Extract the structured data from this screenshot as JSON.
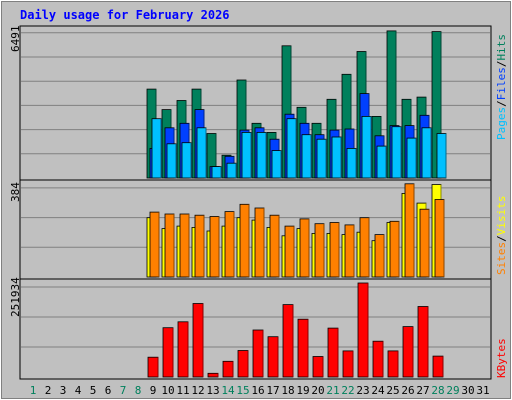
{
  "chart_data": {
    "type": "bar",
    "title": "Daily usage for February 2026",
    "categories": [
      "1",
      "2",
      "3",
      "4",
      "5",
      "6",
      "7",
      "8",
      "9",
      "10",
      "11",
      "12",
      "13",
      "14",
      "15",
      "16",
      "17",
      "18",
      "19",
      "20",
      "21",
      "22",
      "23",
      "24",
      "25",
      "26",
      "27",
      "28",
      "29",
      "30",
      "31"
    ],
    "weekend_days": [
      "1",
      "7",
      "8",
      "14",
      "15",
      "21",
      "22",
      "28",
      "29"
    ],
    "panels": [
      {
        "name": "hits-files-pages",
        "max_label": "6491",
        "ymax": 6491,
        "legend": [
          {
            "text": "Pages",
            "color": "#00c0ff"
          },
          {
            "text": "/",
            "color": "#000000"
          },
          {
            "text": "Files",
            "color": "#0040ff"
          },
          {
            "text": "/",
            "color": "#000000"
          },
          {
            "text": "Hits",
            "color": "#00805c"
          }
        ],
        "series": [
          {
            "name": "Hits",
            "color": "#00805c",
            "values": [
              0,
              0,
              0,
              0,
              0,
              0,
              0,
              0,
              3900,
              3000,
              3400,
              3900,
              1950,
              1000,
              4300,
              2400,
              2000,
              5800,
              3100,
              2400,
              3450,
              4550,
              5550,
              2700,
              6450,
              3450,
              3550,
              6420,
              0,
              0,
              0
            ]
          },
          {
            "name": "Files",
            "color": "#0040ff",
            "values": [
              0,
              0,
              0,
              0,
              0,
              0,
              0,
              0,
              1300,
              2200,
              2400,
              3000,
              500,
              950,
              2100,
              2200,
              1700,
              2800,
              2400,
              1900,
              2100,
              2150,
              3700,
              1850,
              2300,
              2300,
              2750,
              0,
              0,
              0,
              0
            ]
          },
          {
            "name": "Pages",
            "color": "#00c0ff",
            "values": [
              0,
              0,
              0,
              0,
              0,
              0,
              0,
              0,
              2600,
              1500,
              1550,
              2200,
              500,
              650,
              2000,
              2000,
              1200,
              2600,
              1900,
              1700,
              1800,
              1300,
              2700,
              1400,
              2250,
              1750,
              2200,
              1950,
              0,
              0,
              0
            ]
          }
        ]
      },
      {
        "name": "visits-sites",
        "max_label": "384",
        "ymax": 384,
        "legend": [
          {
            "text": "Sites",
            "color": "#ff8000"
          },
          {
            "text": "/",
            "color": "#000000"
          },
          {
            "text": "Visits",
            "color": "#ffff00"
          }
        ],
        "series": [
          {
            "name": "Visits",
            "color": "#ffff00",
            "values": [
              0,
              0,
              0,
              0,
              0,
              0,
              0,
              0,
              245,
              200,
              210,
              205,
              190,
              210,
              245,
              235,
              205,
              170,
              200,
              180,
              180,
              175,
              185,
              150,
              225,
              345,
              305,
              382,
              0,
              0,
              0
            ]
          },
          {
            "name": "Sites",
            "color": "#ff8000",
            "values": [
              0,
              0,
              0,
              0,
              0,
              0,
              0,
              0,
              268,
              260,
              260,
              255,
              250,
              270,
              300,
              285,
              255,
              210,
              240,
              220,
              225,
              215,
              245,
              175,
              230,
              385,
              280,
              320,
              0,
              0,
              0
            ]
          }
        ]
      },
      {
        "name": "kbytes",
        "max_label": "251934",
        "ymax": 251934,
        "legend": [
          {
            "text": "KBytes",
            "color": "#ff0000"
          }
        ],
        "series": [
          {
            "name": "KBytes",
            "color": "#ff0000",
            "values": [
              0,
              0,
              0,
              0,
              0,
              0,
              0,
              0,
              53000,
              132000,
              148000,
              197000,
              10000,
              42000,
              71000,
              126000,
              108000,
              194000,
              155000,
              55000,
              131000,
              70000,
              252000,
              96000,
              70000,
              135000,
              189000,
              56000,
              0,
              0,
              0
            ]
          }
        ]
      }
    ]
  }
}
